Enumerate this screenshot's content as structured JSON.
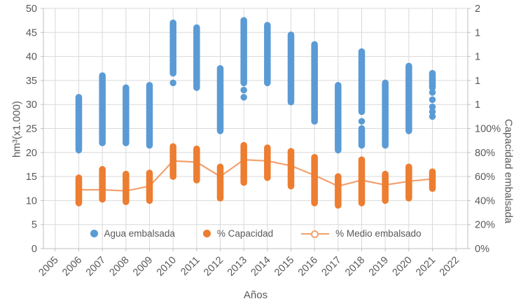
{
  "figure": {
    "background": "#ffffff",
    "text_color": "#595959",
    "grid_color": "#d9d9d9",
    "axis_color": "#bfbfbf"
  },
  "chart_data": {
    "type": "scatter",
    "title": "",
    "grid": true,
    "legend_position": "bottom-inside",
    "x": {
      "label": "Años",
      "min": 2004.5,
      "max": 2022.5,
      "ticks": [
        "2005",
        "2006",
        "2007",
        "2008",
        "2009",
        "2010",
        "2011",
        "2012",
        "2013",
        "2014",
        "2015",
        "2016",
        "2017",
        "2018",
        "2019",
        "2020",
        "2021",
        "2022"
      ]
    },
    "y_left": {
      "label": "hm³(x1.000)",
      "min": 0,
      "max": 50,
      "tick_step": 5,
      "tick_labels": [
        "0",
        "5",
        "10",
        "15",
        "20",
        "25",
        "30",
        "35",
        "40",
        "45",
        "50"
      ]
    },
    "y_right": {
      "label": "Capacidad embalsada",
      "min": 0,
      "max": 200,
      "tick_step": 20,
      "tick_labels": [
        "0%",
        "20%",
        "40%",
        "60%",
        "80%",
        "100%",
        "1",
        "1",
        "1",
        "1",
        "2"
      ]
    },
    "series": [
      {
        "name": "Agua embalsada",
        "key": "agua-embalsada",
        "marker": "dot",
        "type": "dot-column",
        "axis": "left",
        "color": "#5b9bd5",
        "columns": [
          {
            "year": 2006,
            "segments": [
              [
                20.5,
                31.5
              ]
            ],
            "points": []
          },
          {
            "year": 2007,
            "segments": [
              [
                22,
                36
              ]
            ],
            "points": []
          },
          {
            "year": 2008,
            "segments": [
              [
                22,
                33.5
              ]
            ],
            "points": []
          },
          {
            "year": 2009,
            "segments": [
              [
                21.5,
                34
              ]
            ],
            "points": []
          },
          {
            "year": 2010,
            "segments": [
              [
                36.5,
                47
              ]
            ],
            "points": [
              34.5
            ]
          },
          {
            "year": 2011,
            "segments": [
              [
                33.5,
                46
              ]
            ],
            "points": []
          },
          {
            "year": 2012,
            "segments": [
              [
                24.5,
                37.5
              ]
            ],
            "points": []
          },
          {
            "year": 2013,
            "segments": [
              [
                34.5,
                47.5
              ]
            ],
            "points": [
              33,
              31.5
            ]
          },
          {
            "year": 2014,
            "segments": [
              [
                34.5,
                46.5
              ]
            ],
            "points": []
          },
          {
            "year": 2015,
            "segments": [
              [
                30.5,
                44.5
              ]
            ],
            "points": []
          },
          {
            "year": 2016,
            "segments": [
              [
                26.5,
                42.5
              ]
            ],
            "points": []
          },
          {
            "year": 2017,
            "segments": [
              [
                20.5,
                34
              ]
            ],
            "points": []
          },
          {
            "year": 2018,
            "segments": [
              [
                28.5,
                41
              ],
              [
                21.5,
                25
              ]
            ],
            "points": [
              26.5
            ]
          },
          {
            "year": 2019,
            "segments": [
              [
                21.5,
                34.5
              ]
            ],
            "points": []
          },
          {
            "year": 2020,
            "segments": [
              [
                24.5,
                38
              ]
            ],
            "points": []
          },
          {
            "year": 2021,
            "segments": [
              [
                33.5,
                36.5
              ]
            ],
            "points": [
              32.5,
              31,
              29.5,
              28.5,
              27.5
            ]
          }
        ]
      },
      {
        "name": "% Capacidad",
        "key": "pct-capacidad",
        "marker": "dot",
        "type": "dot-column",
        "axis": "right",
        "color": "#ed7d31",
        "columns": [
          {
            "year": 2006,
            "segments": [
              [
                38,
                59
              ]
            ],
            "points": []
          },
          {
            "year": 2007,
            "segments": [
              [
                41,
                66
              ]
            ],
            "points": []
          },
          {
            "year": 2008,
            "segments": [
              [
                39,
                62
              ]
            ],
            "points": []
          },
          {
            "year": 2009,
            "segments": [
              [
                40,
                63
              ]
            ],
            "points": []
          },
          {
            "year": 2010,
            "segments": [
              [
                60,
                85
              ]
            ],
            "points": []
          },
          {
            "year": 2011,
            "segments": [
              [
                57,
                83
              ]
            ],
            "points": []
          },
          {
            "year": 2012,
            "segments": [
              [
                42,
                68
              ]
            ],
            "points": []
          },
          {
            "year": 2013,
            "segments": [
              [
                55,
                86
              ]
            ],
            "points": []
          },
          {
            "year": 2014,
            "segments": [
              [
                59,
                84
              ]
            ],
            "points": []
          },
          {
            "year": 2015,
            "segments": [
              [
                52,
                81
              ]
            ],
            "points": []
          },
          {
            "year": 2016,
            "segments": [
              [
                38,
                76
              ]
            ],
            "points": []
          },
          {
            "year": 2017,
            "segments": [
              [
                36,
                60
              ]
            ],
            "points": []
          },
          {
            "year": 2018,
            "segments": [
              [
                38,
                74
              ]
            ],
            "points": []
          },
          {
            "year": 2019,
            "segments": [
              [
                40,
                62
              ]
            ],
            "points": []
          },
          {
            "year": 2020,
            "segments": [
              [
                42,
                68
              ]
            ],
            "points": []
          },
          {
            "year": 2021,
            "segments": [
              [
                50,
                64
              ]
            ],
            "points": []
          }
        ]
      },
      {
        "name": "% Medio embalsado",
        "key": "pct-medio-embalsado",
        "marker": "line-circle",
        "type": "line",
        "axis": "right",
        "color": "#f2a16e",
        "x": [
          2006,
          2007,
          2008,
          2009,
          2010,
          2011,
          2012,
          2013,
          2014,
          2015,
          2016,
          2017,
          2018,
          2019,
          2020,
          2021
        ],
        "values": [
          49,
          49,
          48,
          52,
          73,
          72,
          60,
          74,
          73,
          69,
          61,
          52,
          57,
          53,
          56,
          58
        ]
      }
    ]
  }
}
